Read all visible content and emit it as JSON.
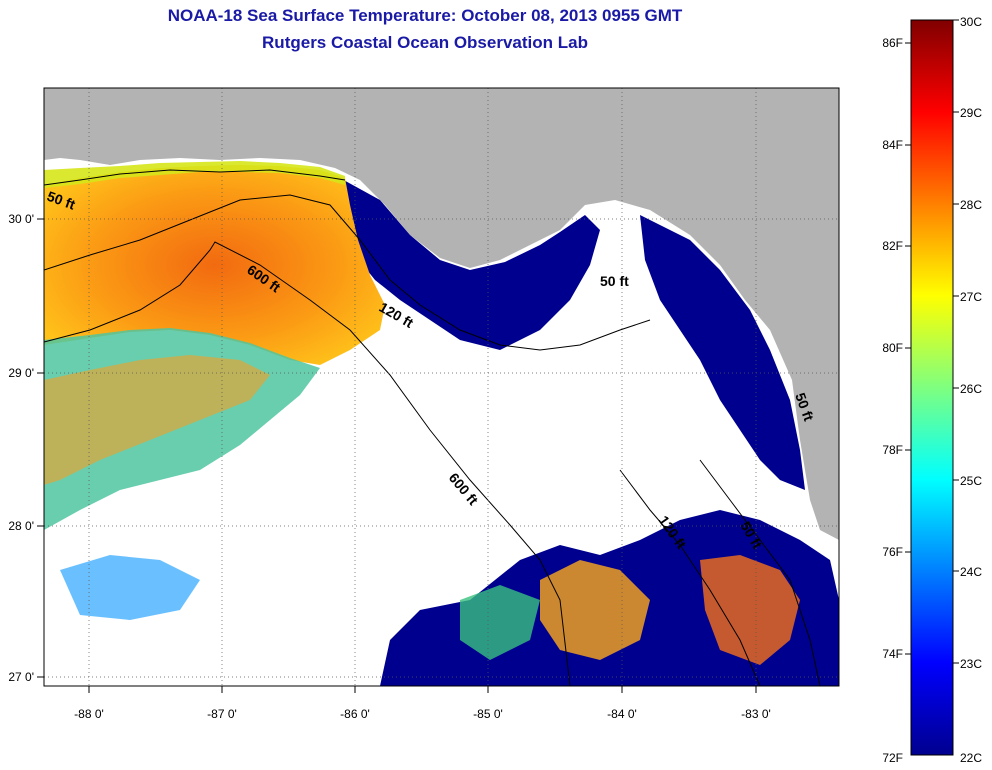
{
  "title": "NOAA-18 Sea Surface Temperature:  October 08, 2013 0955 GMT",
  "subtitle": "Rutgers Coastal Ocean Observation Lab",
  "map": {
    "lon_ticks": [
      "-88 0'",
      "-87 0'",
      "-86 0'",
      "-85 0'",
      "-84 0'",
      "-83 0'"
    ],
    "lat_ticks": [
      "30 0'",
      "29 0'",
      "28 0'",
      "27 0'"
    ],
    "contour_labels": [
      "50 ft",
      "600 ft",
      "120 ft",
      "50 ft",
      "600 ft",
      "120 ft",
      "50 ft",
      "50 ft"
    ],
    "colors": {
      "land": "#b3b3b3",
      "cloud": "#ffffff",
      "cold": "#00008f",
      "warm": "#ff8c00"
    }
  },
  "colorbar": {
    "fahrenheit_labels": [
      "86F",
      "84F",
      "82F",
      "80F",
      "78F",
      "76F",
      "74F",
      "72F"
    ],
    "celsius_labels": [
      "30C",
      "29C",
      "28C",
      "27C",
      "26C",
      "25C",
      "24C",
      "23C",
      "22C"
    ]
  }
}
